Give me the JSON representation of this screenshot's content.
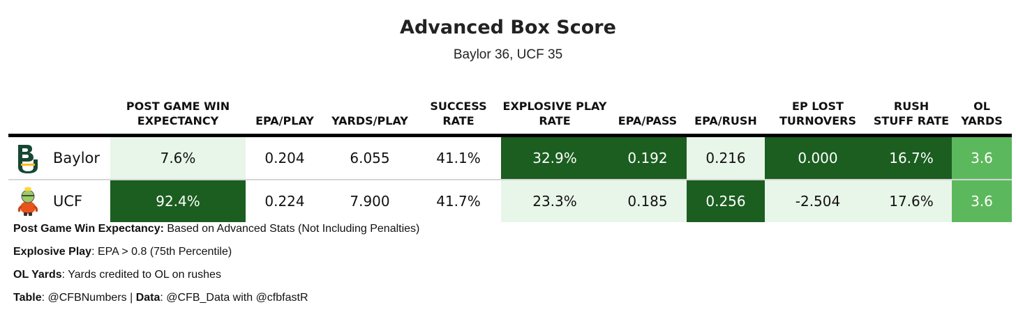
{
  "chart_data": {
    "type": "table",
    "title": "Advanced Box Score",
    "subtitle": "Baylor 36, UCF 35",
    "columns": [
      "POST GAME WIN EXPECTANCY",
      "EPA/PLAY",
      "YARDS/PLAY",
      "SUCCESS RATE",
      "EXPLOSIVE PLAY RATE",
      "EPA/PASS",
      "EPA/RUSH",
      "EP LOST TURNOVERS",
      "RUSH STUFF RATE",
      "OL YARDS"
    ],
    "rows": [
      {
        "team": "Baylor",
        "logo": "baylor-bu-logo",
        "values": [
          "7.6%",
          "0.204",
          "6.055",
          "41.1%",
          "32.9%",
          "0.192",
          "0.216",
          "0.000",
          "16.7%",
          "3.6"
        ]
      },
      {
        "team": "UCF",
        "logo": "ucf-knightro-logo",
        "values": [
          "92.4%",
          "0.224",
          "7.900",
          "41.7%",
          "23.3%",
          "0.185",
          "0.256",
          "-2.504",
          "17.6%",
          "3.6"
        ]
      }
    ],
    "highlight": [
      [
        "lo",
        "none",
        "none",
        "none",
        "hi",
        "hi",
        "lo",
        "hi",
        "hi",
        "ol"
      ],
      [
        "hi",
        "none",
        "none",
        "none",
        "lo",
        "lo",
        "hi",
        "lo",
        "lo",
        "ol"
      ]
    ],
    "colors": {
      "high": "#1b5e20",
      "low": "#e8f5e9",
      "ol": "#5cb85c",
      "header_rule": "#000000"
    }
  },
  "notes": [
    {
      "label": "Post Game Win Expectancy:",
      "text": " Based on Advanced Stats (Not Including Penalties)"
    },
    {
      "label": "Explosive Play",
      "text": ": EPA > 0.8 (75th Percentile)"
    },
    {
      "label": "OL Yards",
      "text": ": Yards credited to OL on rushes"
    }
  ],
  "credits": {
    "table_label": "Table",
    "table_text": ": @CFBNumbers | ",
    "data_label": "Data",
    "data_text": ": @CFB_Data with @cfbfastR"
  }
}
